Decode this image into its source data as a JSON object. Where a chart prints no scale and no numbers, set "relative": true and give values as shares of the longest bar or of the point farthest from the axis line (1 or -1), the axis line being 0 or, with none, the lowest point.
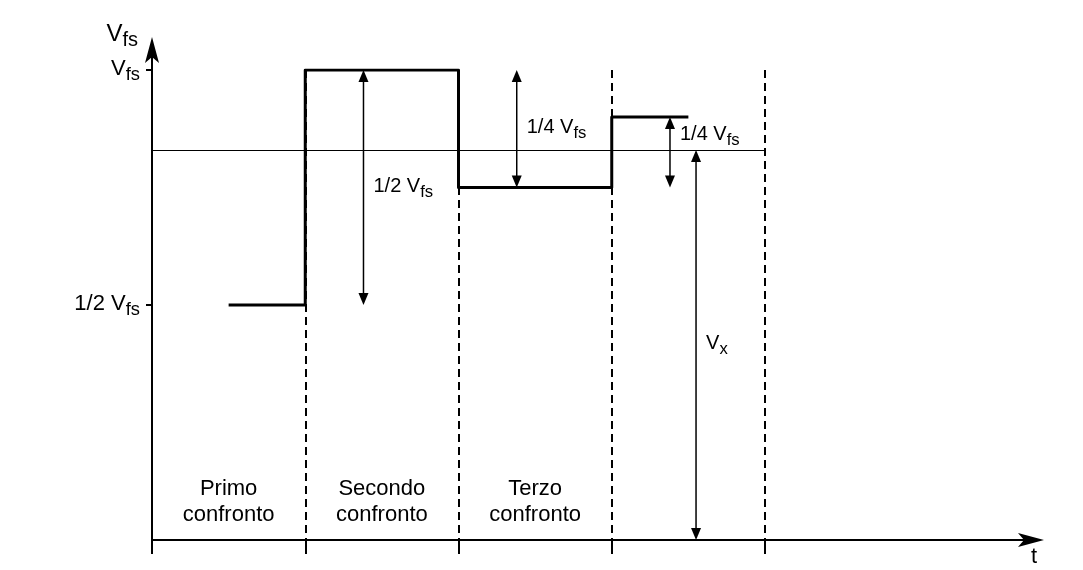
{
  "chart_data": {
    "type": "step",
    "ylabel": "V$_{fs}$",
    "relative": true,
    "categories": [
      "Primo confronto",
      "Secondo confronto",
      "Terzo confronto",
      null
    ],
    "values": [
      0.5,
      1,
      0.75,
      0.9
    ],
    "color": "#000000",
    "grid": "x",
    "marker": "none",
    "line_style": "solid",
    "ref_lines": [
      {
        "axis": "y",
        "value": 0.83
      }
    ],
    "annotations": [
      "1/2 V$_{fs}$",
      "V$_{fs}$",
      "1/2 V$_{fs}$",
      "1/4 V$_{fs}$",
      "1/4 V$_{fs}$",
      "V$_{x}$",
      "t"
    ]
  }
}
